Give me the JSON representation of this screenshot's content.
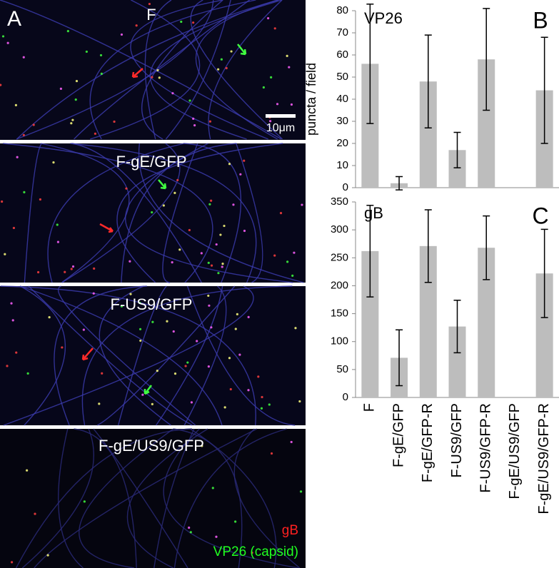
{
  "panel_a": {
    "label": "A",
    "panels": [
      "F",
      "F-gE/GFP",
      "F-US9/GFP",
      "F-gE/US9/GFP"
    ],
    "scale_bar": "10μm",
    "legend": [
      {
        "name": "gB",
        "color": "#ff2020"
      },
      {
        "name": "VP26 (capsid)",
        "color": "#20ff20"
      }
    ]
  },
  "chart_data": [
    {
      "type": "bar",
      "panel_label": "B",
      "title": "VP26",
      "y_label": "puncta / field",
      "values": [
        56,
        2,
        48,
        17,
        58,
        0,
        44
      ],
      "errors": [
        27,
        3,
        21,
        8,
        23,
        0,
        24
      ],
      "color": "#bdbdbd",
      "ylim": [
        0,
        80
      ],
      "yticks": [
        0,
        10,
        20,
        30,
        40,
        50,
        60,
        70,
        80
      ]
    },
    {
      "type": "bar",
      "panel_label": "C",
      "title": "gB",
      "categories": [
        "F",
        "F-gE/GFP",
        "F-gE/GFP-R",
        "F-US9/GFP",
        "F-US9/GFP-R",
        "F-gE/US9/GFP",
        "F-gE/US9/GFP-R"
      ],
      "values": [
        262,
        71,
        271,
        127,
        268,
        0,
        222
      ],
      "errors": [
        82,
        50,
        65,
        47,
        57,
        0,
        79
      ],
      "color": "#bdbdbd",
      "ylim": [
        0,
        350
      ],
      "yticks": [
        0,
        50,
        100,
        150,
        200,
        250,
        300,
        350
      ]
    }
  ]
}
